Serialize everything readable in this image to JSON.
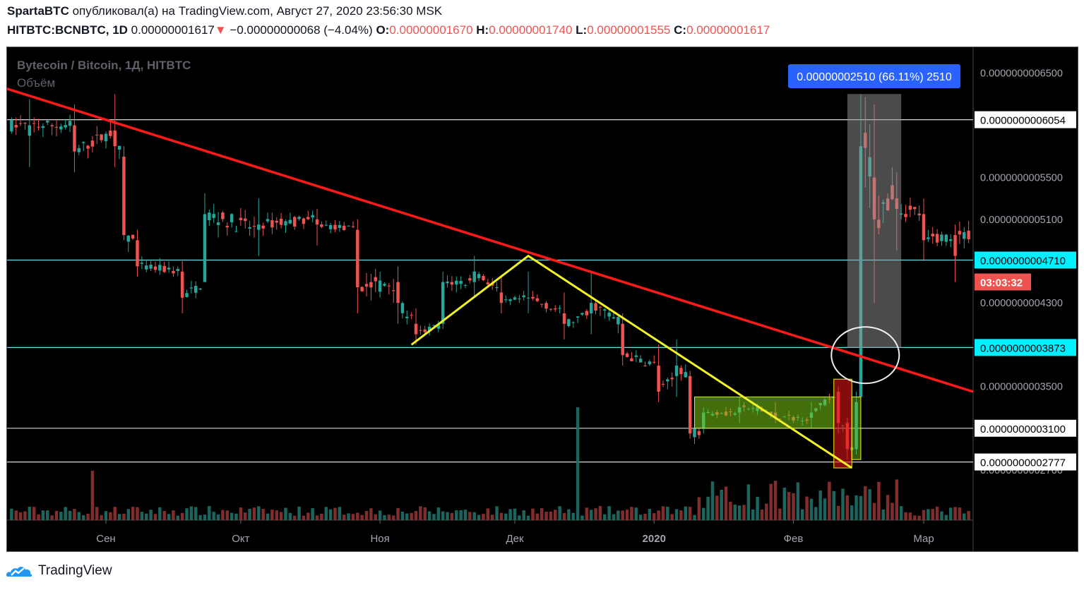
{
  "header": {
    "author": "SpartaBTC",
    "published_text": "опубликовал(а) на TradingView.com, Август 27, 2020 23:56:30 MSK",
    "symbol": "HITBTC:BCNBTC, 1D",
    "last": "0.00000001617",
    "change_arrow": "▼",
    "change": "−0.00000000068 (−4.04%)",
    "o_label": "O:",
    "o_value": "0.00000001670",
    "h_label": "H:",
    "h_value": "0.00000001740",
    "l_label": "L:",
    "l_value": "0.00000001555",
    "c_label": "C:",
    "c_value": "0.00000001617"
  },
  "footer": {
    "brand": "TradingView"
  },
  "colors": {
    "background": "#000000",
    "up": "#26a69a",
    "down": "#ef5350",
    "trendline": "#ff1a1a",
    "pattern": "#f2f224",
    "measure": "#2962ff"
  },
  "chart_data": {
    "type": "candlestick",
    "title": "Bytecoin / Bitcoin, 1Д, HITBTC",
    "volume_label": "Объём",
    "x_tick_labels": [
      "Сен",
      "Окт",
      "Ноя",
      "Дек",
      "2020",
      "Фев",
      "Мар"
    ],
    "y_tick_labels": [
      "0.0000000006500",
      "0.0000000005500",
      "0.0000000005100",
      "0.0000000004300",
      "0.0000000003500",
      "0.0000000003100",
      "0.0000000002700"
    ],
    "y_tick_values": [
      6.5e-10,
      5.5e-10,
      5.1e-10,
      4.3e-10,
      3.5e-10,
      3.1e-10,
      2.7e-10
    ],
    "levels": [
      {
        "value": 6.054e-10,
        "label": "0.0000000006054",
        "style": "white"
      },
      {
        "value": 4.71e-10,
        "label": "0.0000000004710",
        "style": "cyan"
      },
      {
        "value": 3.873e-10,
        "label": "0.0000000003873",
        "style": "cyan"
      },
      {
        "value": 3.1e-10,
        "label": "0.0000000003100",
        "style": "white"
      },
      {
        "value": 2.777e-10,
        "label": "0.0000000002777",
        "style": "white"
      }
    ],
    "countdown": "03:03:32",
    "measure_label": "0.00000002510 (66.11%) 2510",
    "x_range": [
      "2019-08-10",
      "2020-03-12"
    ],
    "candles": [
      {
        "date": "2019-08-15",
        "open": 5.9e-10,
        "high": 6.25e-10,
        "low": 5.6e-10,
        "close": 6e-10
      },
      {
        "date": "2019-08-25",
        "open": 6e-10,
        "high": 6.2e-10,
        "low": 5.55e-10,
        "close": 5.75e-10
      },
      {
        "date": "2019-09-03",
        "open": 5.95e-10,
        "high": 6.3e-10,
        "low": 5.6e-10,
        "close": 5.8e-10
      },
      {
        "date": "2019-09-05",
        "open": 5.7e-10,
        "high": 5.8e-10,
        "low": 4.9e-10,
        "close": 4.95e-10
      },
      {
        "date": "2019-09-08",
        "open": 4.9e-10,
        "high": 5e-10,
        "low": 4.55e-10,
        "close": 4.65e-10
      },
      {
        "date": "2019-09-18",
        "open": 4.6e-10,
        "high": 4.7e-10,
        "low": 4.2e-10,
        "close": 4.35e-10
      },
      {
        "date": "2019-09-23",
        "open": 4.5e-10,
        "high": 5.35e-10,
        "low": 4.5e-10,
        "close": 5.15e-10
      },
      {
        "date": "2019-10-05",
        "open": 5e-10,
        "high": 5.3e-10,
        "low": 4.75e-10,
        "close": 5.05e-10
      },
      {
        "date": "2019-10-18",
        "open": 5.1e-10,
        "high": 5.2e-10,
        "low": 4.85e-10,
        "close": 5.05e-10
      },
      {
        "date": "2019-10-27",
        "open": 5e-10,
        "high": 5.1e-10,
        "low": 4.2e-10,
        "close": 4.45e-10
      },
      {
        "date": "2019-11-05",
        "open": 4.5e-10,
        "high": 4.65e-10,
        "low": 4.1e-10,
        "close": 4.3e-10
      },
      {
        "date": "2019-11-09",
        "open": 4.1e-10,
        "high": 4.25e-10,
        "low": 3.9e-10,
        "close": 4e-10
      },
      {
        "date": "2019-11-15",
        "open": 4.1e-10,
        "high": 4.6e-10,
        "low": 4.05e-10,
        "close": 4.5e-10
      },
      {
        "date": "2019-11-22",
        "open": 4.5e-10,
        "high": 4.75e-10,
        "low": 4.35e-10,
        "close": 4.6e-10
      },
      {
        "date": "2019-11-28",
        "open": 4.4e-10,
        "high": 4.55e-10,
        "low": 4.2e-10,
        "close": 4.3e-10
      },
      {
        "date": "2019-12-04",
        "open": 4.35e-10,
        "high": 4.6e-10,
        "low": 4.2e-10,
        "close": 4.35e-10
      },
      {
        "date": "2019-12-12",
        "open": 4.2e-10,
        "high": 4.4e-10,
        "low": 3.95e-10,
        "close": 4.1e-10
      },
      {
        "date": "2019-12-18",
        "open": 4.2e-10,
        "high": 4.6e-10,
        "low": 4e-10,
        "close": 4.3e-10
      },
      {
        "date": "2019-12-25",
        "open": 4.1e-10,
        "high": 4.2e-10,
        "low": 3.7e-10,
        "close": 3.8e-10
      },
      {
        "date": "2020-01-02",
        "open": 3.7e-10,
        "high": 3.9e-10,
        "low": 3.35e-10,
        "close": 3.45e-10
      },
      {
        "date": "2020-01-06",
        "open": 3.6e-10,
        "high": 3.95e-10,
        "low": 3.4e-10,
        "close": 3.7e-10
      },
      {
        "date": "2020-01-09",
        "open": 3.6e-10,
        "high": 3.65e-10,
        "low": 3e-10,
        "close": 3.05e-10
      },
      {
        "date": "2020-01-12",
        "open": 3.1e-10,
        "high": 3.3e-10,
        "low": 3.05e-10,
        "close": 3.25e-10
      },
      {
        "date": "2020-01-20",
        "open": 3.25e-10,
        "high": 3.4e-10,
        "low": 3.15e-10,
        "close": 3.3e-10
      },
      {
        "date": "2020-01-28",
        "open": 3.25e-10,
        "high": 3.35e-10,
        "low": 3.15e-10,
        "close": 3.2e-10
      },
      {
        "date": "2020-02-05",
        "open": 3.2e-10,
        "high": 3.35e-10,
        "low": 3.1e-10,
        "close": 3.25e-10
      },
      {
        "date": "2020-02-11",
        "open": 3.45e-10,
        "high": 3.5e-10,
        "low": 3.05e-10,
        "close": 3.15e-10
      },
      {
        "date": "2020-02-13",
        "open": 3.15e-10,
        "high": 3.2e-10,
        "low": 2.8e-10,
        "close": 2.9e-10
      },
      {
        "date": "2020-02-15",
        "open": 2.9e-10,
        "high": 3.45e-10,
        "low": 2.85e-10,
        "close": 3.35e-10
      },
      {
        "date": "2020-02-16",
        "open": 3.4e-10,
        "high": 6.3e-10,
        "low": 3.4e-10,
        "close": 5.8e-10
      },
      {
        "date": "2020-02-19",
        "open": 5.5e-10,
        "high": 6.2e-10,
        "low": 4.3e-10,
        "close": 5.1e-10
      },
      {
        "date": "2020-02-24",
        "open": 5.3e-10,
        "high": 5.55e-10,
        "low": 4.8e-10,
        "close": 5.2e-10
      },
      {
        "date": "2020-03-01",
        "open": 5.15e-10,
        "high": 5.3e-10,
        "low": 4.7e-10,
        "close": 4.9e-10
      },
      {
        "date": "2020-03-08",
        "open": 4.95e-10,
        "high": 5.05e-10,
        "low": 4.5e-10,
        "close": 4.75e-10
      }
    ]
  }
}
